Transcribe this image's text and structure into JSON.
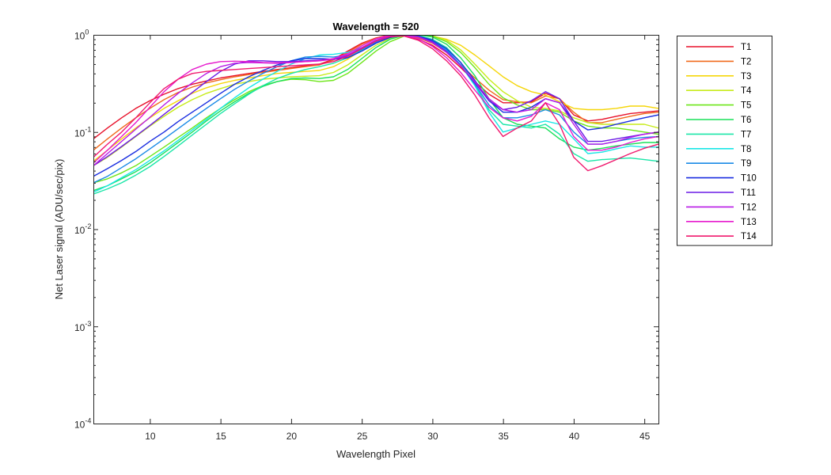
{
  "chart_data": {
    "type": "line",
    "title": "Wavelength = 520",
    "xlabel": "Wavelength Pixel",
    "ylabel": "Net Laser signal  (ADU/sec/pix)",
    "xlim": [
      6,
      46
    ],
    "ylim": [
      0.0001,
      1
    ],
    "yscale": "log",
    "xticks": [
      10,
      15,
      20,
      25,
      30,
      35,
      40,
      45
    ],
    "xtick_labels": [
      "10",
      "15",
      "20",
      "25",
      "30",
      "35",
      "40",
      "45"
    ],
    "yticks": [
      {
        "value": 0.0001,
        "base": "10",
        "exp": "-4"
      },
      {
        "value": 0.001,
        "base": "10",
        "exp": "-3"
      },
      {
        "value": 0.01,
        "base": "10",
        "exp": "-2"
      },
      {
        "value": 0.1,
        "base": "10",
        "exp": "-1"
      },
      {
        "value": 1,
        "base": "10",
        "exp": "0"
      }
    ],
    "grid": false,
    "legend_position": "outside-right",
    "x": [
      6,
      7,
      8,
      9,
      10,
      11,
      12,
      13,
      14,
      15,
      16,
      17,
      18,
      19,
      20,
      21,
      22,
      23,
      24,
      25,
      26,
      27,
      28,
      29,
      30,
      31,
      32,
      33,
      34,
      35,
      36,
      37,
      38,
      39,
      40,
      41,
      42,
      43,
      44,
      45,
      46
    ],
    "series": [
      {
        "name": "T1",
        "color": "#e8112a",
        "values": [
          0.085,
          0.11,
          0.14,
          0.175,
          0.21,
          0.245,
          0.28,
          0.31,
          0.335,
          0.36,
          0.38,
          0.4,
          0.42,
          0.44,
          0.46,
          0.48,
          0.5,
          0.56,
          0.68,
          0.82,
          0.93,
          1.0,
          0.97,
          0.9,
          0.78,
          0.62,
          0.46,
          0.33,
          0.245,
          0.2,
          0.2,
          0.205,
          0.25,
          0.22,
          0.15,
          0.13,
          0.135,
          0.145,
          0.155,
          0.16,
          0.165
        ]
      },
      {
        "name": "T2",
        "color": "#f06a1c",
        "values": [
          0.065,
          0.085,
          0.11,
          0.14,
          0.175,
          0.215,
          0.255,
          0.29,
          0.32,
          0.345,
          0.37,
          0.39,
          0.41,
          0.43,
          0.45,
          0.47,
          0.49,
          0.55,
          0.66,
          0.8,
          0.92,
          0.99,
          0.99,
          0.93,
          0.82,
          0.66,
          0.49,
          0.36,
          0.27,
          0.215,
          0.205,
          0.2,
          0.235,
          0.22,
          0.16,
          0.125,
          0.125,
          0.135,
          0.145,
          0.155,
          0.16
        ]
      },
      {
        "name": "T3",
        "color": "#f5d60a",
        "values": [
          0.05,
          0.065,
          0.085,
          0.11,
          0.14,
          0.175,
          0.21,
          0.25,
          0.285,
          0.315,
          0.34,
          0.36,
          0.38,
          0.4,
          0.41,
          0.42,
          0.43,
          0.47,
          0.56,
          0.7,
          0.85,
          0.96,
          1.0,
          1.0,
          0.97,
          0.9,
          0.78,
          0.62,
          0.48,
          0.37,
          0.3,
          0.26,
          0.24,
          0.205,
          0.175,
          0.17,
          0.17,
          0.175,
          0.185,
          0.185,
          0.175
        ]
      },
      {
        "name": "T4",
        "color": "#c7eb1a",
        "values": [
          0.045,
          0.055,
          0.07,
          0.09,
          0.115,
          0.145,
          0.18,
          0.215,
          0.25,
          0.28,
          0.31,
          0.33,
          0.35,
          0.36,
          0.37,
          0.375,
          0.38,
          0.41,
          0.49,
          0.62,
          0.78,
          0.92,
          1.0,
          1.0,
          0.98,
          0.88,
          0.7,
          0.5,
          0.35,
          0.26,
          0.21,
          0.18,
          0.175,
          0.165,
          0.14,
          0.125,
          0.12,
          0.12,
          0.12,
          0.12,
          0.11
        ]
      },
      {
        "name": "T5",
        "color": "#6ee61a",
        "values": [
          0.03,
          0.033,
          0.038,
          0.045,
          0.056,
          0.07,
          0.088,
          0.11,
          0.14,
          0.175,
          0.215,
          0.26,
          0.3,
          0.33,
          0.35,
          0.345,
          0.33,
          0.34,
          0.4,
          0.52,
          0.68,
          0.85,
          0.97,
          1.0,
          0.97,
          0.85,
          0.66,
          0.46,
          0.31,
          0.225,
          0.19,
          0.17,
          0.17,
          0.16,
          0.13,
          0.115,
          0.11,
          0.11,
          0.105,
          0.1,
          0.095
        ]
      },
      {
        "name": "T6",
        "color": "#1ae05a",
        "values": [
          0.025,
          0.028,
          0.033,
          0.039,
          0.048,
          0.061,
          0.078,
          0.1,
          0.13,
          0.165,
          0.205,
          0.25,
          0.295,
          0.33,
          0.355,
          0.36,
          0.355,
          0.37,
          0.44,
          0.57,
          0.74,
          0.9,
          0.99,
          1.0,
          0.95,
          0.8,
          0.58,
          0.38,
          0.22,
          0.14,
          0.12,
          0.115,
          0.11,
          0.085,
          0.07,
          0.065,
          0.068,
          0.072,
          0.075,
          0.078,
          0.078
        ]
      },
      {
        "name": "T7",
        "color": "#1ae6a8",
        "values": [
          0.023,
          0.026,
          0.03,
          0.036,
          0.044,
          0.056,
          0.072,
          0.093,
          0.12,
          0.155,
          0.195,
          0.245,
          0.3,
          0.355,
          0.4,
          0.44,
          0.47,
          0.51,
          0.58,
          0.7,
          0.84,
          0.96,
          1.0,
          0.98,
          0.9,
          0.74,
          0.52,
          0.31,
          0.17,
          0.12,
          0.115,
          0.11,
          0.12,
          0.095,
          0.06,
          0.05,
          0.052,
          0.053,
          0.054,
          0.052,
          0.05
        ]
      },
      {
        "name": "T8",
        "color": "#1ae6e6",
        "values": [
          0.024,
          0.028,
          0.034,
          0.041,
          0.051,
          0.064,
          0.082,
          0.105,
          0.135,
          0.175,
          0.225,
          0.285,
          0.35,
          0.42,
          0.5,
          0.57,
          0.62,
          0.63,
          0.66,
          0.74,
          0.86,
          0.96,
          0.99,
          0.96,
          0.87,
          0.7,
          0.49,
          0.3,
          0.16,
          0.1,
          0.11,
          0.12,
          0.13,
          0.12,
          0.085,
          0.06,
          0.062,
          0.067,
          0.072,
          0.07,
          0.07
        ]
      },
      {
        "name": "T9",
        "color": "#1a8ae6",
        "values": [
          0.03,
          0.035,
          0.043,
          0.053,
          0.067,
          0.085,
          0.108,
          0.138,
          0.175,
          0.22,
          0.275,
          0.335,
          0.4,
          0.47,
          0.54,
          0.59,
          0.6,
          0.59,
          0.62,
          0.71,
          0.84,
          0.95,
          0.99,
          0.96,
          0.86,
          0.69,
          0.49,
          0.31,
          0.19,
          0.14,
          0.14,
          0.15,
          0.17,
          0.15,
          0.1,
          0.075,
          0.075,
          0.08,
          0.085,
          0.088,
          0.09
        ]
      },
      {
        "name": "T10",
        "color": "#1a2ee0",
        "values": [
          0.035,
          0.042,
          0.051,
          0.063,
          0.08,
          0.1,
          0.128,
          0.16,
          0.2,
          0.25,
          0.31,
          0.37,
          0.43,
          0.49,
          0.54,
          0.57,
          0.57,
          0.56,
          0.58,
          0.68,
          0.82,
          0.94,
          1.0,
          0.97,
          0.88,
          0.72,
          0.52,
          0.34,
          0.21,
          0.16,
          0.16,
          0.18,
          0.22,
          0.2,
          0.13,
          0.105,
          0.11,
          0.12,
          0.13,
          0.14,
          0.15
        ]
      },
      {
        "name": "T11",
        "color": "#6a1ae6",
        "values": [
          0.045,
          0.056,
          0.071,
          0.091,
          0.117,
          0.152,
          0.197,
          0.255,
          0.33,
          0.42,
          0.5,
          0.54,
          0.54,
          0.53,
          0.53,
          0.54,
          0.55,
          0.56,
          0.61,
          0.72,
          0.86,
          0.97,
          1.0,
          0.96,
          0.85,
          0.67,
          0.48,
          0.32,
          0.21,
          0.17,
          0.18,
          0.21,
          0.26,
          0.22,
          0.13,
          0.08,
          0.08,
          0.085,
          0.09,
          0.095,
          0.1
        ]
      },
      {
        "name": "T12",
        "color": "#b81ae6",
        "values": [
          0.045,
          0.06,
          0.08,
          0.107,
          0.142,
          0.19,
          0.25,
          0.32,
          0.4,
          0.47,
          0.51,
          0.52,
          0.515,
          0.51,
          0.52,
          0.53,
          0.54,
          0.56,
          0.62,
          0.74,
          0.88,
          0.98,
          1.0,
          0.95,
          0.83,
          0.66,
          0.48,
          0.33,
          0.22,
          0.17,
          0.16,
          0.17,
          0.22,
          0.2,
          0.12,
          0.075,
          0.075,
          0.08,
          0.088,
          0.095,
          0.1
        ]
      },
      {
        "name": "T13",
        "color": "#e61acd",
        "values": [
          0.048,
          0.065,
          0.09,
          0.125,
          0.18,
          0.26,
          0.35,
          0.44,
          0.5,
          0.53,
          0.535,
          0.53,
          0.52,
          0.515,
          0.52,
          0.53,
          0.54,
          0.57,
          0.64,
          0.77,
          0.91,
          0.99,
          0.99,
          0.91,
          0.76,
          0.58,
          0.41,
          0.27,
          0.18,
          0.14,
          0.13,
          0.145,
          0.2,
          0.17,
          0.09,
          0.065,
          0.065,
          0.07,
          0.078,
          0.085,
          0.09
        ]
      },
      {
        "name": "T14",
        "color": "#f01a6e",
        "values": [
          0.055,
          0.075,
          0.1,
          0.14,
          0.2,
          0.28,
          0.35,
          0.4,
          0.42,
          0.43,
          0.44,
          0.45,
          0.46,
          0.47,
          0.48,
          0.49,
          0.5,
          0.53,
          0.6,
          0.72,
          0.86,
          0.96,
          0.97,
          0.88,
          0.72,
          0.54,
          0.38,
          0.24,
          0.14,
          0.09,
          0.11,
          0.13,
          0.2,
          0.12,
          0.055,
          0.04,
          0.045,
          0.052,
          0.06,
          0.068,
          0.075
        ]
      }
    ]
  }
}
